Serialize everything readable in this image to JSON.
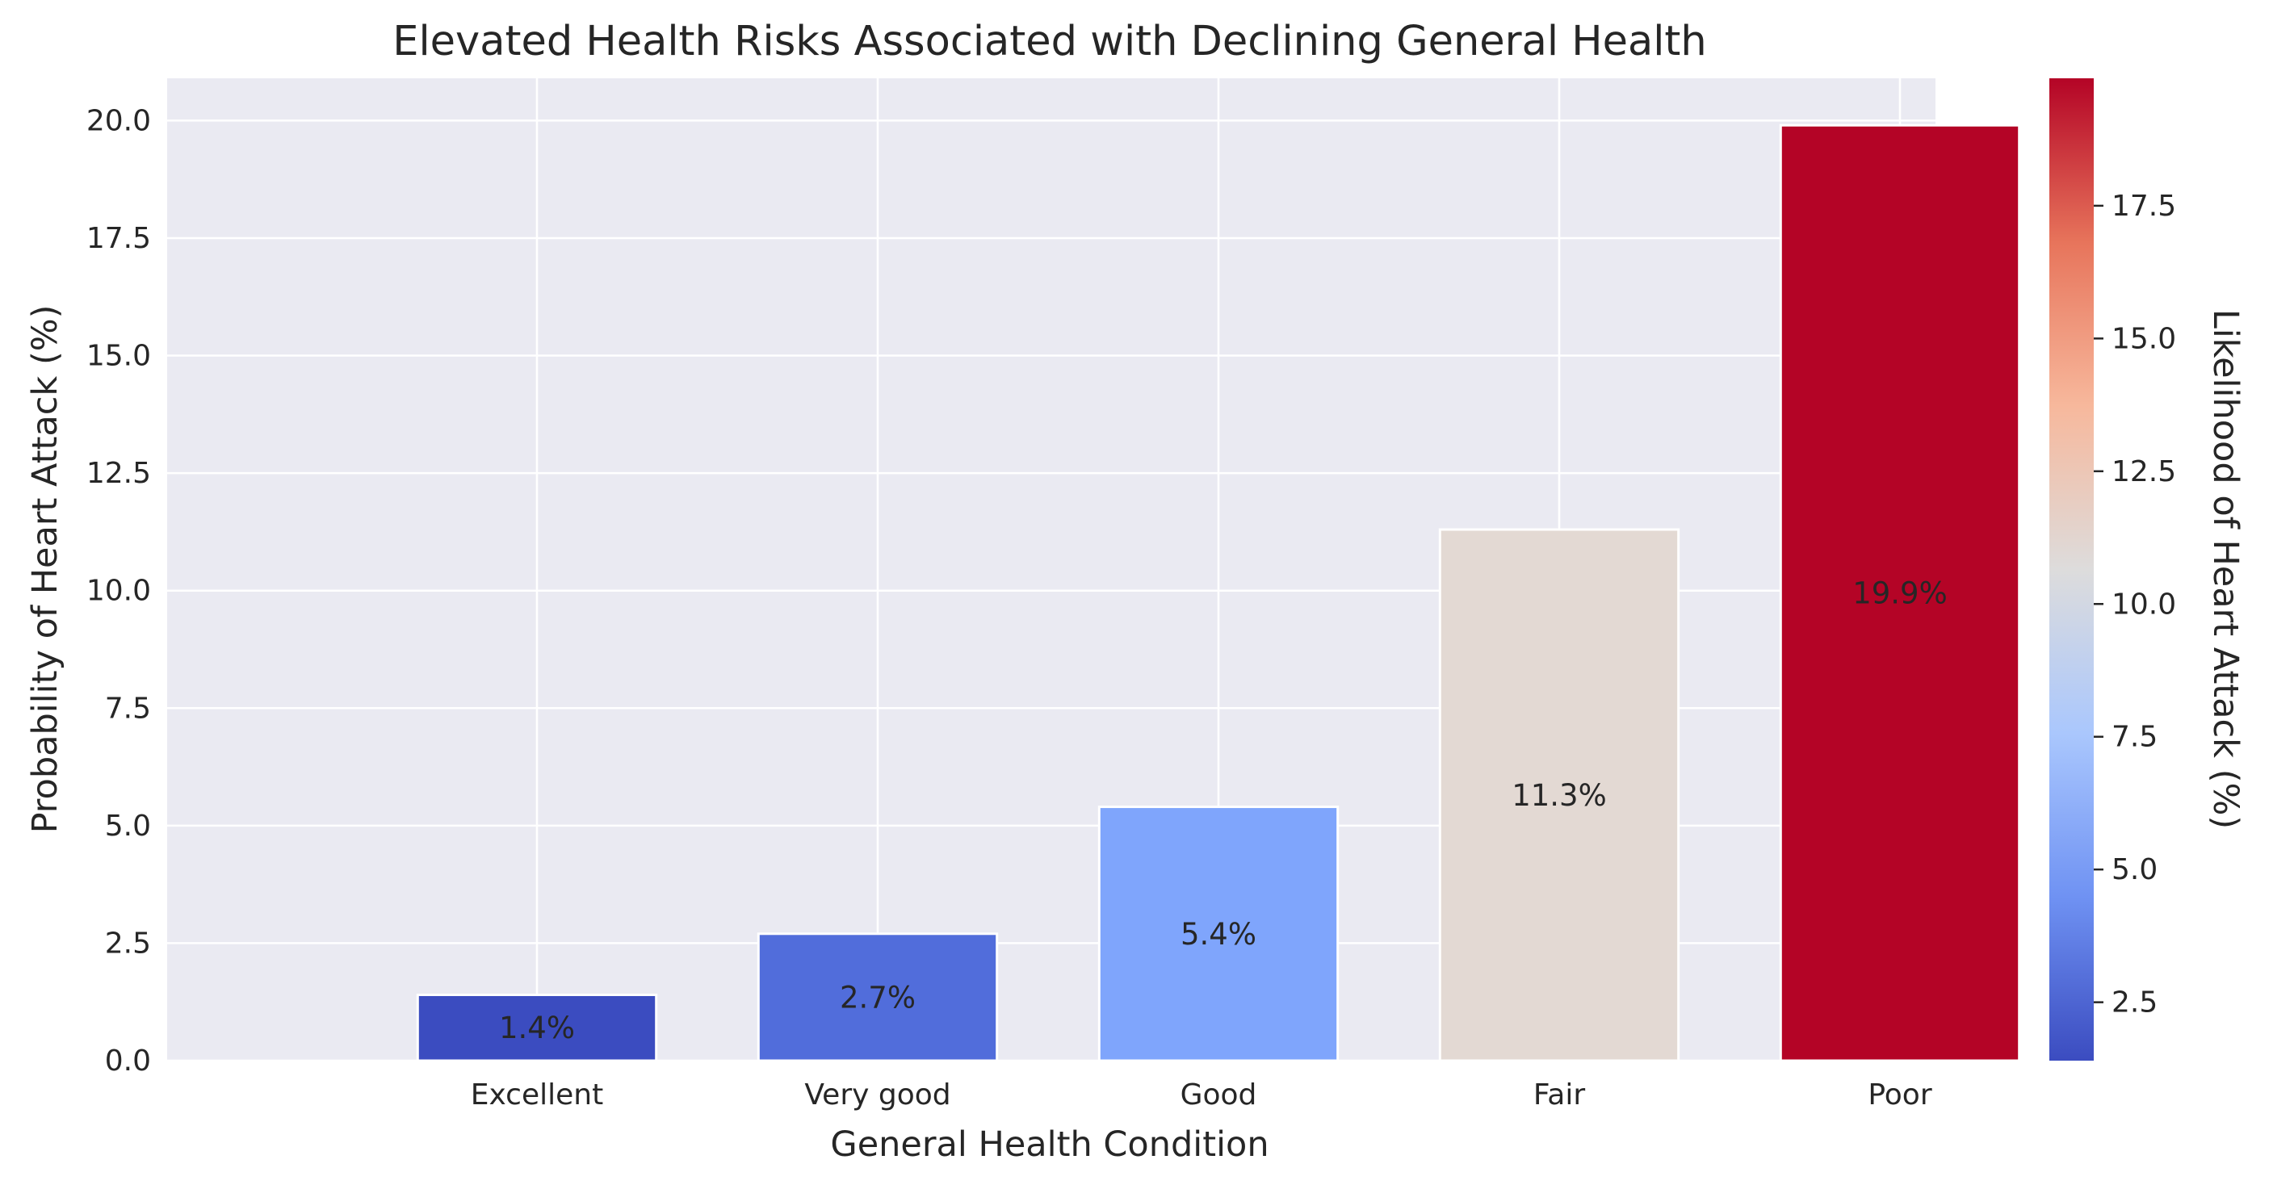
{
  "chart_data": {
    "type": "bar",
    "title": "Elevated Health Risks Associated with Declining General Health",
    "xlabel": "General Health Condition",
    "ylabel": "Probability of Heart Attack (%)",
    "categories": [
      "Excellent",
      "Very good",
      "Good",
      "Fair",
      "Poor"
    ],
    "values": [
      1.4,
      2.7,
      5.4,
      11.3,
      19.9
    ],
    "data_labels": [
      "1.4%",
      "2.7%",
      "5.4%",
      "11.3%",
      "19.9%"
    ],
    "ylim": [
      0,
      20.9
    ],
    "yticks": [
      0.0,
      2.5,
      5.0,
      7.5,
      10.0,
      12.5,
      15.0,
      17.5,
      20.0
    ],
    "ytick_labels": [
      "0.0",
      "2.5",
      "5.0",
      "7.5",
      "10.0",
      "12.5",
      "15.0",
      "17.5",
      "20.0"
    ],
    "grid": true,
    "colormap": "coolwarm",
    "bar_colors": [
      "#3b4cc0",
      "#516ddb",
      "#7fa5fc",
      "#e3d9d3",
      "#b40426"
    ],
    "colorbar": {
      "label": "Likelihood of Heart Attack (%)",
      "range": [
        1.4,
        19.9
      ],
      "ticks": [
        2.5,
        5.0,
        7.5,
        10.0,
        12.5,
        15.0,
        17.5
      ],
      "tick_labels": [
        "2.5",
        "5.0",
        "7.5",
        "10.0",
        "12.5",
        "15.0",
        "17.5"
      ],
      "stops": [
        "#3b4cc0",
        "#6f92f3",
        "#aac7fd",
        "#dddcdc",
        "#f7b89c",
        "#e7745b",
        "#b40426"
      ]
    }
  }
}
